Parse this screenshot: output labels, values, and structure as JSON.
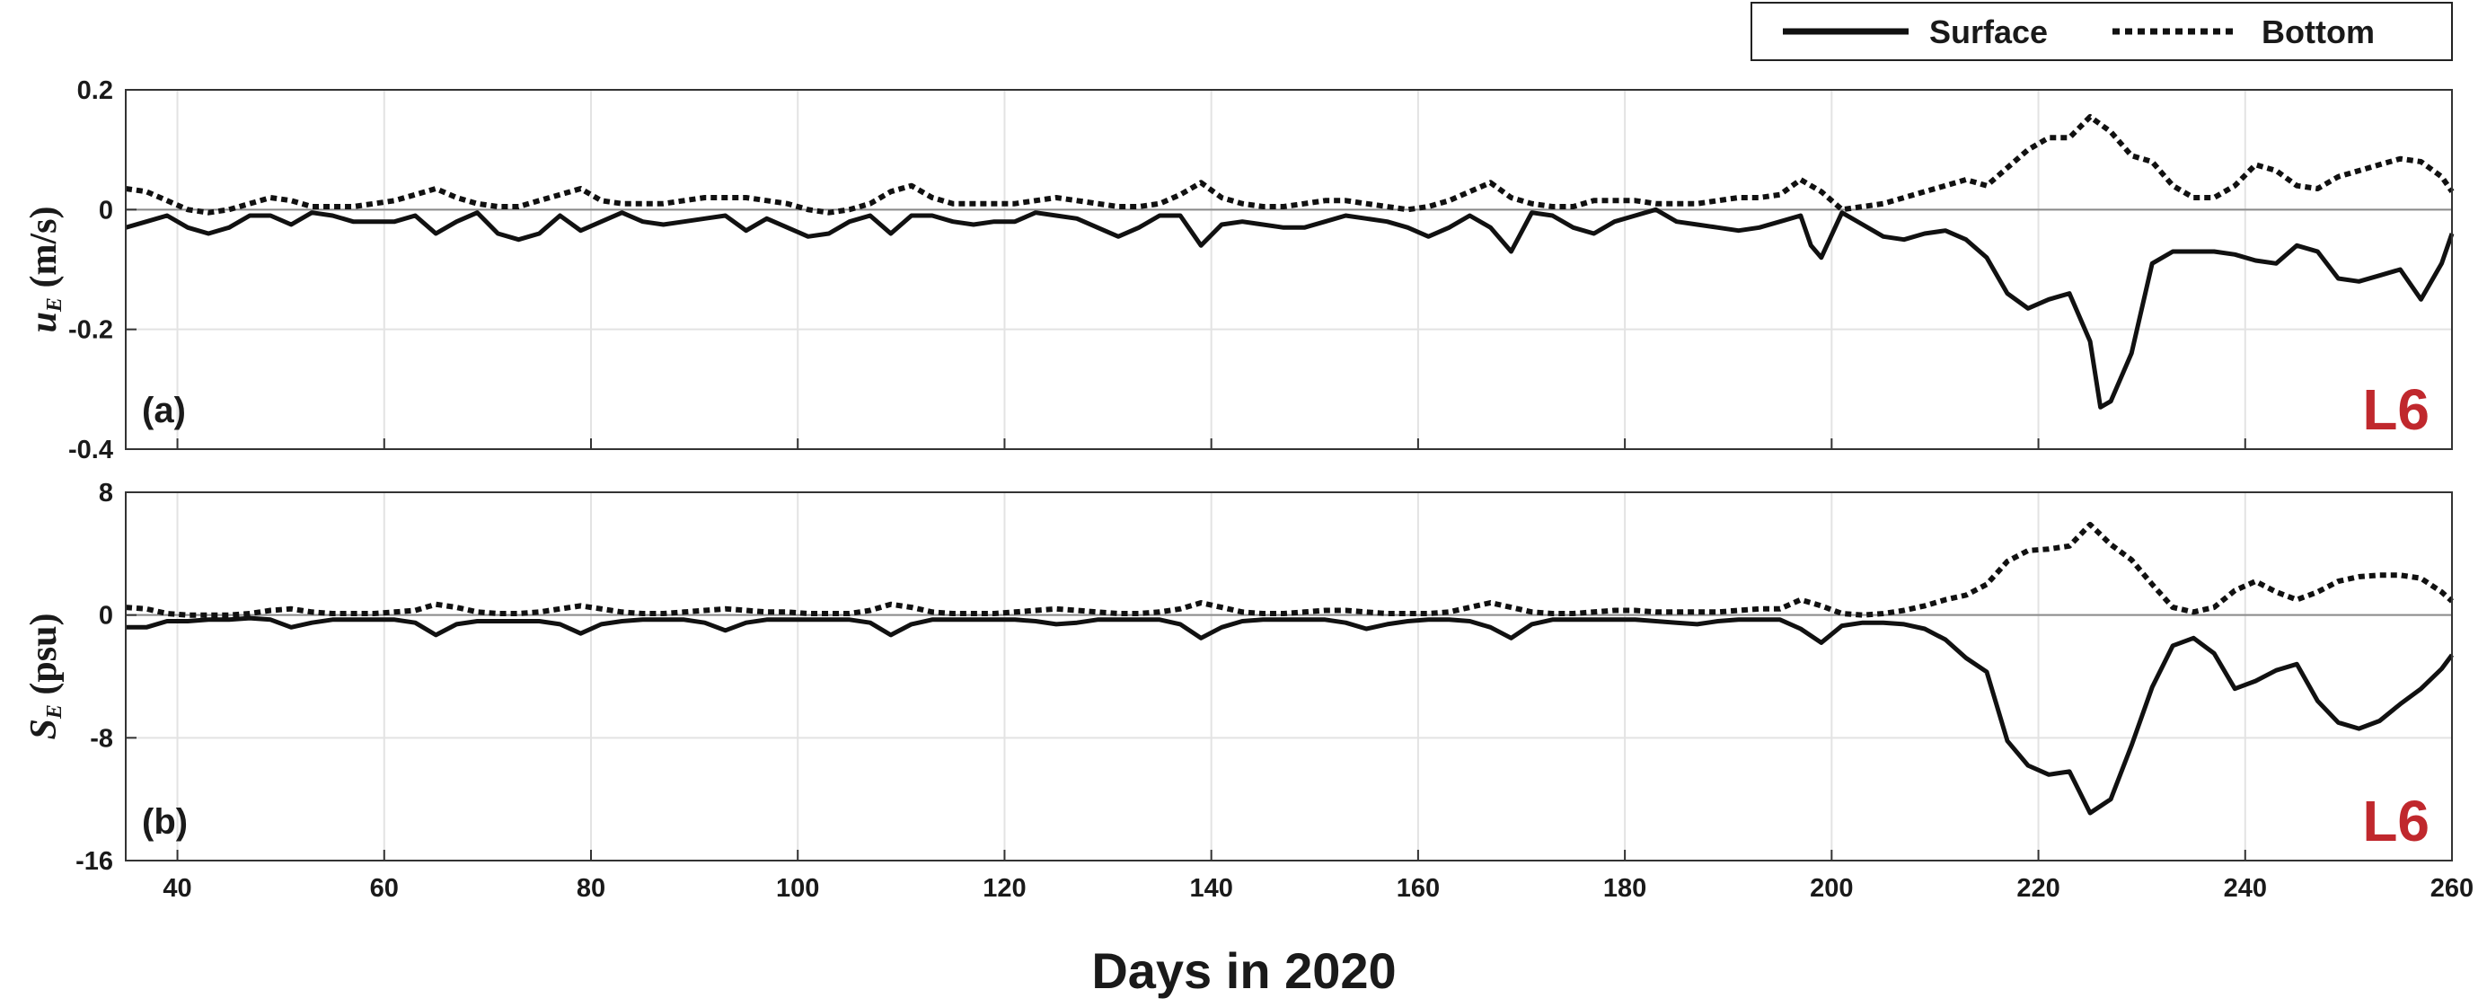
{
  "figure": {
    "xlabel": "Days in 2020",
    "station_color": "#c0282d",
    "surface_color": "#111111",
    "bottom_color": "#111111"
  },
  "legend": {
    "surface_label": "Surface",
    "bottom_label": "Bottom",
    "position": "top-right"
  },
  "chart_data": [
    {
      "type": "line",
      "panel_label": "(a)",
      "station": "L6",
      "ylabel_var": "u",
      "ylabel_sub": "E",
      "ylabel_unit": " (m/s)",
      "xlim": [
        35,
        260
      ],
      "ylim": [
        -0.4,
        0.2
      ],
      "xticks": [
        40,
        60,
        80,
        100,
        120,
        140,
        160,
        180,
        200,
        220,
        240,
        260
      ],
      "yticks": [
        -0.4,
        -0.2,
        0,
        0.2
      ],
      "ytick_labels": [
        "-0.4",
        "-0.2",
        "0",
        "0.2"
      ],
      "grid": true,
      "zero_line": true,
      "series": [
        {
          "name": "Surface",
          "style": "solid",
          "x": [
            35,
            37,
            39,
            41,
            43,
            45,
            47,
            49,
            51,
            53,
            55,
            57,
            59,
            61,
            63,
            65,
            67,
            69,
            71,
            73,
            75,
            77,
            79,
            81,
            83,
            85,
            87,
            89,
            91,
            93,
            95,
            97,
            99,
            101,
            103,
            105,
            107,
            109,
            111,
            113,
            115,
            117,
            119,
            121,
            123,
            125,
            127,
            129,
            131,
            133,
            135,
            137,
            139,
            141,
            143,
            145,
            147,
            149,
            151,
            153,
            155,
            157,
            159,
            161,
            163,
            165,
            167,
            169,
            171,
            173,
            175,
            177,
            179,
            181,
            183,
            185,
            187,
            189,
            191,
            193,
            195,
            197,
            198,
            199,
            201,
            203,
            205,
            207,
            209,
            211,
            213,
            215,
            217,
            219,
            221,
            223,
            225,
            226,
            227,
            229,
            231,
            233,
            235,
            237,
            239,
            241,
            243,
            245,
            247,
            249,
            251,
            253,
            255,
            257,
            259,
            260
          ],
          "y": [
            -0.03,
            -0.02,
            -0.01,
            -0.03,
            -0.04,
            -0.03,
            -0.01,
            -0.01,
            -0.025,
            -0.005,
            -0.01,
            -0.02,
            -0.02,
            -0.02,
            -0.01,
            -0.04,
            -0.02,
            -0.005,
            -0.04,
            -0.05,
            -0.04,
            -0.01,
            -0.035,
            -0.02,
            -0.005,
            -0.02,
            -0.025,
            -0.02,
            -0.015,
            -0.01,
            -0.035,
            -0.015,
            -0.03,
            -0.045,
            -0.04,
            -0.02,
            -0.01,
            -0.04,
            -0.01,
            -0.01,
            -0.02,
            -0.025,
            -0.02,
            -0.02,
            -0.005,
            -0.01,
            -0.015,
            -0.03,
            -0.045,
            -0.03,
            -0.01,
            -0.01,
            -0.06,
            -0.025,
            -0.02,
            -0.025,
            -0.03,
            -0.03,
            -0.02,
            -0.01,
            -0.015,
            -0.02,
            -0.03,
            -0.045,
            -0.03,
            -0.01,
            -0.03,
            -0.07,
            -0.005,
            -0.01,
            -0.03,
            -0.04,
            -0.02,
            -0.01,
            0.0,
            -0.02,
            -0.025,
            -0.03,
            -0.035,
            -0.03,
            -0.02,
            -0.01,
            -0.06,
            -0.08,
            -0.005,
            -0.025,
            -0.045,
            -0.05,
            -0.04,
            -0.035,
            -0.05,
            -0.08,
            -0.14,
            -0.165,
            -0.15,
            -0.14,
            -0.22,
            -0.33,
            -0.32,
            -0.24,
            -0.09,
            -0.07,
            -0.07,
            -0.07,
            -0.075,
            -0.085,
            -0.09,
            -0.06,
            -0.07,
            -0.115,
            -0.12,
            -0.11,
            -0.1,
            -0.15,
            -0.09,
            -0.04
          ]
        },
        {
          "name": "Bottom",
          "style": "dotted",
          "x": [
            35,
            37,
            39,
            41,
            43,
            45,
            47,
            49,
            51,
            53,
            55,
            57,
            59,
            61,
            63,
            65,
            67,
            69,
            71,
            73,
            75,
            77,
            79,
            81,
            83,
            85,
            87,
            89,
            91,
            93,
            95,
            97,
            99,
            101,
            103,
            105,
            107,
            109,
            111,
            113,
            115,
            117,
            119,
            121,
            123,
            125,
            127,
            129,
            131,
            133,
            135,
            137,
            139,
            141,
            143,
            145,
            147,
            149,
            151,
            153,
            155,
            157,
            159,
            161,
            163,
            165,
            167,
            169,
            171,
            173,
            175,
            177,
            179,
            181,
            183,
            185,
            187,
            189,
            191,
            193,
            195,
            197,
            199,
            201,
            203,
            205,
            207,
            209,
            211,
            213,
            215,
            217,
            219,
            221,
            223,
            225,
            227,
            229,
            231,
            233,
            235,
            237,
            239,
            241,
            243,
            245,
            247,
            249,
            251,
            253,
            255,
            257,
            259,
            260
          ],
          "y": [
            0.035,
            0.03,
            0.015,
            0.0,
            -0.005,
            0.0,
            0.01,
            0.02,
            0.015,
            0.005,
            0.005,
            0.005,
            0.01,
            0.015,
            0.025,
            0.035,
            0.02,
            0.01,
            0.005,
            0.005,
            0.015,
            0.025,
            0.035,
            0.015,
            0.01,
            0.01,
            0.01,
            0.015,
            0.02,
            0.02,
            0.02,
            0.015,
            0.01,
            0.0,
            -0.005,
            0.0,
            0.01,
            0.03,
            0.04,
            0.02,
            0.01,
            0.01,
            0.01,
            0.01,
            0.015,
            0.02,
            0.015,
            0.01,
            0.005,
            0.005,
            0.01,
            0.025,
            0.045,
            0.02,
            0.01,
            0.005,
            0.005,
            0.01,
            0.015,
            0.015,
            0.01,
            0.005,
            0.0,
            0.005,
            0.015,
            0.03,
            0.045,
            0.02,
            0.01,
            0.005,
            0.005,
            0.015,
            0.015,
            0.015,
            0.01,
            0.01,
            0.01,
            0.015,
            0.02,
            0.02,
            0.025,
            0.05,
            0.03,
            0.0,
            0.005,
            0.01,
            0.02,
            0.03,
            0.04,
            0.05,
            0.04,
            0.07,
            0.1,
            0.12,
            0.12,
            0.155,
            0.13,
            0.09,
            0.08,
            0.04,
            0.02,
            0.02,
            0.04,
            0.075,
            0.065,
            0.04,
            0.035,
            0.055,
            0.065,
            0.075,
            0.085,
            0.08,
            0.055,
            0.03
          ]
        }
      ]
    },
    {
      "type": "line",
      "panel_label": "(b)",
      "station": "L6",
      "ylabel_var": "S",
      "ylabel_sub": "E",
      "ylabel_unit": " (psu)",
      "xlim": [
        35,
        260
      ],
      "ylim": [
        -16,
        8
      ],
      "xticks": [
        40,
        60,
        80,
        100,
        120,
        140,
        160,
        180,
        200,
        220,
        240,
        260
      ],
      "xtick_labels": [
        "40",
        "60",
        "80",
        "100",
        "120",
        "140",
        "160",
        "180",
        "200",
        "220",
        "240",
        "260"
      ],
      "yticks": [
        -16,
        -8,
        0,
        8
      ],
      "ytick_labels": [
        "-16",
        "-8",
        "0",
        "8"
      ],
      "grid": true,
      "zero_line": true,
      "series": [
        {
          "name": "Surface",
          "style": "solid",
          "x": [
            35,
            37,
            39,
            41,
            43,
            45,
            47,
            49,
            51,
            53,
            55,
            57,
            59,
            61,
            63,
            65,
            67,
            69,
            71,
            73,
            75,
            77,
            79,
            81,
            83,
            85,
            87,
            89,
            91,
            93,
            95,
            97,
            99,
            101,
            103,
            105,
            107,
            109,
            111,
            113,
            115,
            117,
            119,
            121,
            123,
            125,
            127,
            129,
            131,
            133,
            135,
            137,
            139,
            141,
            143,
            145,
            147,
            149,
            151,
            153,
            155,
            157,
            159,
            161,
            163,
            165,
            167,
            169,
            171,
            173,
            175,
            177,
            179,
            181,
            183,
            185,
            187,
            189,
            191,
            193,
            195,
            197,
            199,
            201,
            203,
            205,
            207,
            209,
            211,
            213,
            215,
            217,
            219,
            221,
            223,
            225,
            227,
            229,
            231,
            233,
            235,
            237,
            239,
            241,
            243,
            245,
            247,
            249,
            251,
            253,
            255,
            257,
            259,
            260
          ],
          "y": [
            -0.8,
            -0.8,
            -0.4,
            -0.4,
            -0.3,
            -0.3,
            -0.2,
            -0.3,
            -0.8,
            -0.5,
            -0.3,
            -0.3,
            -0.3,
            -0.3,
            -0.5,
            -1.3,
            -0.6,
            -0.4,
            -0.4,
            -0.4,
            -0.4,
            -0.6,
            -1.2,
            -0.6,
            -0.4,
            -0.3,
            -0.3,
            -0.3,
            -0.5,
            -1.0,
            -0.5,
            -0.3,
            -0.3,
            -0.3,
            -0.3,
            -0.3,
            -0.5,
            -1.3,
            -0.6,
            -0.3,
            -0.3,
            -0.3,
            -0.3,
            -0.3,
            -0.4,
            -0.6,
            -0.5,
            -0.3,
            -0.3,
            -0.3,
            -0.3,
            -0.6,
            -1.5,
            -0.8,
            -0.4,
            -0.3,
            -0.3,
            -0.3,
            -0.3,
            -0.5,
            -0.9,
            -0.6,
            -0.4,
            -0.3,
            -0.3,
            -0.4,
            -0.8,
            -1.5,
            -0.6,
            -0.3,
            -0.3,
            -0.3,
            -0.3,
            -0.3,
            -0.4,
            -0.5,
            -0.6,
            -0.4,
            -0.3,
            -0.3,
            -0.3,
            -0.9,
            -1.8,
            -0.7,
            -0.5,
            -0.5,
            -0.6,
            -0.9,
            -1.6,
            -2.8,
            -3.7,
            -8.2,
            -9.8,
            -10.4,
            -10.2,
            -12.9,
            -12.0,
            -8.5,
            -4.7,
            -2.0,
            -1.5,
            -2.5,
            -4.8,
            -4.3,
            -3.6,
            -3.2,
            -5.6,
            -7.0,
            -7.4,
            -6.9,
            -5.8,
            -4.8,
            -3.5,
            -2.6
          ]
        },
        {
          "name": "Bottom",
          "style": "dotted",
          "x": [
            35,
            37,
            39,
            41,
            43,
            45,
            47,
            49,
            51,
            53,
            55,
            57,
            59,
            61,
            63,
            65,
            67,
            69,
            71,
            73,
            75,
            77,
            79,
            81,
            83,
            85,
            87,
            89,
            91,
            93,
            95,
            97,
            99,
            101,
            103,
            105,
            107,
            109,
            111,
            113,
            115,
            117,
            119,
            121,
            123,
            125,
            127,
            129,
            131,
            133,
            135,
            137,
            139,
            141,
            143,
            145,
            147,
            149,
            151,
            153,
            155,
            157,
            159,
            161,
            163,
            165,
            167,
            169,
            171,
            173,
            175,
            177,
            179,
            181,
            183,
            185,
            187,
            189,
            191,
            193,
            195,
            197,
            199,
            201,
            203,
            205,
            207,
            209,
            211,
            213,
            215,
            217,
            219,
            221,
            223,
            225,
            227,
            229,
            231,
            233,
            235,
            237,
            239,
            241,
            243,
            245,
            247,
            249,
            251,
            253,
            255,
            257,
            259,
            260
          ],
          "y": [
            0.5,
            0.4,
            0.1,
            0.0,
            0.0,
            0.0,
            0.1,
            0.3,
            0.4,
            0.2,
            0.1,
            0.1,
            0.1,
            0.2,
            0.3,
            0.7,
            0.5,
            0.2,
            0.1,
            0.1,
            0.2,
            0.4,
            0.6,
            0.4,
            0.2,
            0.1,
            0.1,
            0.2,
            0.3,
            0.4,
            0.3,
            0.2,
            0.2,
            0.1,
            0.1,
            0.1,
            0.3,
            0.7,
            0.5,
            0.2,
            0.1,
            0.1,
            0.1,
            0.2,
            0.3,
            0.4,
            0.3,
            0.2,
            0.1,
            0.1,
            0.2,
            0.4,
            0.8,
            0.5,
            0.2,
            0.1,
            0.1,
            0.2,
            0.3,
            0.3,
            0.2,
            0.1,
            0.1,
            0.1,
            0.2,
            0.5,
            0.8,
            0.5,
            0.2,
            0.1,
            0.1,
            0.2,
            0.3,
            0.3,
            0.2,
            0.2,
            0.2,
            0.2,
            0.3,
            0.4,
            0.4,
            1.0,
            0.6,
            0.1,
            0.0,
            0.1,
            0.3,
            0.6,
            1.0,
            1.3,
            2.0,
            3.5,
            4.2,
            4.3,
            4.5,
            5.9,
            4.6,
            3.6,
            2.0,
            0.5,
            0.2,
            0.5,
            1.6,
            2.2,
            1.5,
            1.0,
            1.5,
            2.2,
            2.5,
            2.6,
            2.6,
            2.4,
            1.5,
            0.9
          ]
        }
      ]
    }
  ]
}
